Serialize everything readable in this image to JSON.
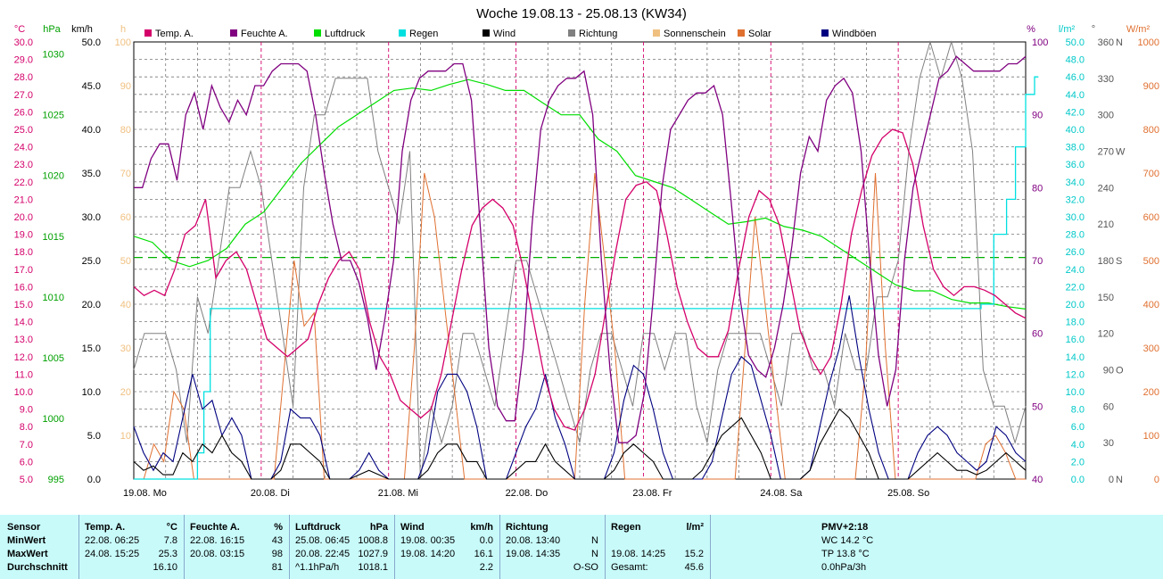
{
  "chart_data": {
    "type": "line",
    "title": "Woche 19.08.13 - 25.08.13 (KW34)",
    "x_labels": [
      "19.08.  Mo",
      "20.08.  Di",
      "21.08.  Mi",
      "22.08.  Do",
      "23.08.  Fr",
      "24.08.  Sa",
      "25.08.  So"
    ],
    "axes": {
      "temp": {
        "unit": "°C",
        "min": 5,
        "max": 30,
        "ticks": [
          "5.0",
          "6.0",
          "7.0",
          "8.0",
          "9.0",
          "10.0",
          "11.0",
          "12.0",
          "13.0",
          "14.0",
          "15.0",
          "16.0",
          "17.0",
          "18.0",
          "19.0",
          "20.0",
          "21.0",
          "22.0",
          "23.0",
          "24.0",
          "25.0",
          "26.0",
          "27.0",
          "28.0",
          "29.0",
          "30.0"
        ],
        "color": "#d4006a"
      },
      "pressure": {
        "unit": "hPa",
        "min": 995,
        "max": 1031,
        "ticks": [
          "995",
          "1000",
          "1005",
          "1010",
          "1015",
          "1020",
          "1025",
          "1030"
        ],
        "color": "#00a000"
      },
      "wind": {
        "unit": "km/h",
        "min": 0,
        "max": 50,
        "ticks": [
          "0.0",
          "5.0",
          "10.0",
          "15.0",
          "20.0",
          "25.0",
          "30.0",
          "35.0",
          "40.0",
          "45.0",
          "50.0"
        ],
        "color": "#000000"
      },
      "sun": {
        "unit": "h",
        "ticks": [
          "10",
          "20",
          "30",
          "40",
          "50",
          "60",
          "70",
          "80",
          "90",
          "100"
        ],
        "color": "#f0c080"
      },
      "humidity": {
        "unit": "%",
        "min": 40,
        "max": 100,
        "ticks": [
          "40",
          "50",
          "60",
          "70",
          "80",
          "90",
          "100"
        ],
        "color": "#800080"
      },
      "rain": {
        "unit": "l/m²",
        "min": 0,
        "max": 50,
        "ticks": [
          "0.0",
          "2.0",
          "4.0",
          "6.0",
          "8.0",
          "10.0",
          "12.0",
          "14.0",
          "16.0",
          "18.0",
          "20.0",
          "22.0",
          "24.0",
          "26.0",
          "28.0",
          "30.0",
          "32.0",
          "34.0",
          "36.0",
          "38.0",
          "40.0",
          "42.0",
          "44.0",
          "46.0",
          "48.0",
          "50.0"
        ],
        "color": "#00c8c8"
      },
      "direction": {
        "unit": "°",
        "ticks": [
          "0",
          "30",
          "60",
          "90",
          "120",
          "150",
          "180",
          "210",
          "240",
          "270",
          "300",
          "330",
          "360"
        ],
        "compass": {
          "0": "N",
          "90": "O",
          "180": "S",
          "270": "W",
          "360": "N"
        },
        "color": "#808080"
      },
      "solar": {
        "unit": "W/m²",
        "min": 0,
        "max": 1000,
        "ticks": [
          "0",
          "100",
          "200",
          "300",
          "400",
          "500",
          "600",
          "700",
          "800",
          "900",
          "1000"
        ],
        "color": "#e07030"
      }
    },
    "legend": [
      {
        "name": "Temp. A.",
        "color": "#d4006a"
      },
      {
        "name": "Feuchte A.",
        "color": "#800080"
      },
      {
        "name": "Luftdruck",
        "color": "#00dd00"
      },
      {
        "name": "Regen",
        "color": "#00e0e0"
      },
      {
        "name": "Wind",
        "color": "#000000"
      },
      {
        "name": "Richtung",
        "color": "#808080"
      },
      {
        "name": "Sonnenschein",
        "color": "#f0c080"
      },
      {
        "name": "Solar",
        "color": "#e07030"
      },
      {
        "name": "Windböen",
        "color": "#000080"
      }
    ],
    "series": {
      "temp": [
        16,
        15.5,
        15.8,
        15.5,
        17,
        19,
        19.5,
        21,
        16.5,
        17.5,
        18,
        17,
        15,
        13,
        12.5,
        12,
        12.5,
        13,
        15,
        16.5,
        17.5,
        18,
        17,
        14,
        12,
        11,
        9.5,
        9,
        8.5,
        9,
        11,
        14,
        17,
        19.5,
        20.5,
        21,
        20.5,
        19.5,
        17,
        14,
        11,
        9,
        8,
        7.8,
        9,
        11,
        14.5,
        18,
        21,
        21.8,
        22,
        21.5,
        19,
        16,
        14,
        12.5,
        12,
        12,
        13.5,
        17,
        20,
        21.5,
        21,
        19.5,
        16.5,
        13.5,
        12,
        11,
        12,
        15,
        19,
        21.5,
        23.5,
        24.5,
        25,
        24.8,
        23,
        19.5,
        17,
        16,
        15.5,
        16,
        16,
        15.8,
        15.5,
        15,
        14.5,
        14.2
      ],
      "humidity": [
        80,
        80,
        84,
        86,
        86,
        81,
        90,
        93,
        88,
        94,
        91,
        89,
        92,
        90,
        94,
        94,
        96,
        97,
        97,
        97,
        96,
        90,
        82,
        75,
        70,
        70,
        67,
        62,
        55,
        62,
        70,
        85,
        92,
        95,
        96,
        96,
        96,
        97,
        97,
        92,
        75,
        58,
        50,
        48,
        48,
        58,
        75,
        88,
        92,
        94,
        95,
        95,
        96,
        90,
        70,
        55,
        45,
        45,
        46,
        52,
        65,
        80,
        88,
        90,
        92,
        93,
        93,
        94,
        90,
        78,
        65,
        57,
        55,
        54,
        58,
        64,
        72,
        82,
        87,
        85,
        92,
        94,
        95,
        93,
        85,
        70,
        57,
        50,
        55,
        70,
        80,
        85,
        90,
        95,
        96,
        98,
        97,
        96,
        96,
        96,
        96,
        97,
        97,
        98
      ],
      "pressure": [
        1015,
        1014.5,
        1013,
        1012.5,
        1013,
        1014,
        1016,
        1017,
        1019,
        1021,
        1022.5,
        1024,
        1025,
        1026,
        1027,
        1027.2,
        1027,
        1027.5,
        1027.9,
        1027.5,
        1027,
        1027,
        1026,
        1025,
        1025,
        1023,
        1022,
        1020,
        1019.5,
        1019,
        1018,
        1017,
        1016,
        1016.2,
        1016.5,
        1015.8,
        1015.5,
        1015,
        1014,
        1013,
        1012,
        1011,
        1010.5,
        1010.5,
        1009.8,
        1009.5,
        1009.5,
        1009.2,
        1009
      ],
      "rain_steps": [
        [
          0,
          0
        ],
        [
          0.47,
          0
        ],
        [
          0.5,
          3
        ],
        [
          0.55,
          10
        ],
        [
          0.6,
          19.5
        ],
        [
          6.63,
          19.5
        ],
        [
          6.65,
          20
        ],
        [
          6.75,
          28
        ],
        [
          6.85,
          32
        ],
        [
          6.92,
          38
        ],
        [
          7.0,
          44
        ],
        [
          7.07,
          46
        ],
        [
          7.1,
          46
        ]
      ],
      "wind": [
        2,
        1,
        1.5,
        0.5,
        0.5,
        3,
        2,
        4,
        3,
        5,
        3,
        2,
        0,
        0,
        0,
        1,
        4,
        4,
        3,
        2,
        0,
        0,
        0,
        0.5,
        1,
        0.5,
        0,
        0,
        0,
        0,
        1,
        3,
        4,
        4,
        2,
        2,
        0,
        0,
        0,
        1,
        2,
        2,
        4,
        2,
        1,
        0,
        0,
        0,
        0,
        1,
        3,
        4,
        3,
        2,
        0,
        0,
        0,
        0,
        1,
        3,
        5,
        6,
        7,
        5,
        3,
        0,
        0,
        0,
        0,
        1,
        4,
        6,
        8,
        7,
        5,
        3,
        0,
        0,
        0,
        0,
        1,
        2,
        3,
        2,
        1,
        1,
        0.5,
        1,
        2,
        3,
        2,
        1
      ],
      "gusts": [
        6,
        3,
        1,
        3,
        2,
        7,
        12,
        8,
        9,
        5,
        7,
        5,
        0,
        0,
        0,
        2,
        8,
        7,
        7,
        5,
        0,
        0,
        0,
        1,
        3,
        1,
        0,
        0,
        0,
        0,
        3,
        10,
        12,
        12,
        10,
        6,
        0,
        0,
        0,
        3,
        6,
        8,
        12,
        7,
        4,
        0,
        0,
        0,
        0,
        3,
        9,
        13,
        12,
        8,
        3,
        0,
        0,
        0,
        0,
        2,
        7,
        12,
        14,
        13,
        9,
        5,
        0,
        0,
        0,
        1,
        6,
        11,
        15,
        21,
        14,
        8,
        3,
        0,
        0,
        0,
        3,
        5,
        6,
        5,
        3,
        2,
        1,
        2,
        6,
        5,
        3,
        2
      ],
      "direction": [
        90,
        120,
        120,
        120,
        90,
        30,
        150,
        120,
        180,
        240,
        240,
        270,
        240,
        180,
        120,
        60,
        240,
        300,
        300,
        330,
        330,
        330,
        330,
        270,
        240,
        210,
        270,
        0,
        60,
        30,
        60,
        120,
        120,
        90,
        60,
        120,
        180,
        180,
        150,
        120,
        90,
        60,
        30,
        90,
        120,
        120,
        90,
        60,
        120,
        120,
        90,
        120,
        120,
        60,
        30,
        90,
        120,
        120,
        120,
        120,
        90,
        60,
        120,
        120,
        90,
        90,
        60,
        120,
        90,
        90,
        150,
        150,
        180,
        270,
        330,
        360,
        330,
        360,
        330,
        270,
        90,
        60,
        60,
        30,
        60
      ],
      "solar": [
        0,
        0,
        80,
        40,
        200,
        160,
        0,
        0,
        0,
        0,
        0,
        0,
        0,
        0,
        0,
        250,
        500,
        350,
        380,
        0,
        0,
        0,
        0,
        0,
        0,
        0,
        0,
        0,
        300,
        700,
        600,
        400,
        200,
        0,
        0,
        0,
        0,
        0,
        0,
        0,
        0,
        0,
        0,
        0,
        0,
        400,
        700,
        500,
        300,
        0,
        0,
        0,
        0,
        0,
        0,
        0,
        0,
        0,
        0,
        0,
        0,
        300,
        600,
        400,
        200,
        0,
        0,
        0,
        0,
        0,
        0,
        0,
        0,
        250,
        700,
        300,
        0,
        0,
        0,
        0,
        0,
        0,
        0,
        0,
        0,
        80,
        100,
        60,
        0,
        0
      ]
    },
    "ref_lines": [
      {
        "name": "Luftdruck dashed",
        "axis": "pressure",
        "value": 1013.25,
        "style": "dashed",
        "color": "#00b000"
      }
    ],
    "grid": true
  },
  "stats": {
    "headers": {
      "sensor": "Sensor",
      "temp": "Temp. A.",
      "temp_unit": "°C",
      "hum": "Feuchte A.",
      "hum_unit": "%",
      "press": "Luftdruck",
      "press_unit": "hPa",
      "wind": "Wind",
      "wind_unit": "km/h",
      "dir": "Richtung",
      "rain": "Regen",
      "rain_unit": "l/m²",
      "pmv": "PMV+2:18"
    },
    "rows": [
      {
        "label": "MinWert",
        "temp_t": "22.08.  06:25",
        "temp_v": "7.8",
        "hum_t": "22.08.  16:15",
        "hum_v": "43",
        "press_t": "25.08.  06:45",
        "press_v": "1008.8",
        "wind_t": "19.08.  00:35",
        "wind_v": "0.0",
        "dir_t": "20.08.  13:40",
        "dir_v": "N",
        "rain_t": "",
        "rain_v": "",
        "pmv": "WC 14.2 °C"
      },
      {
        "label": "MaxWert",
        "temp_t": "24.08.  15:25",
        "temp_v": "25.3",
        "hum_t": "20.08.  03:15",
        "hum_v": "98",
        "press_t": "20.08.  22:45",
        "press_v": "1027.9",
        "wind_t": "19.08.  14:20",
        "wind_v": "16.1",
        "dir_t": "19.08.  14:35",
        "dir_v": "N",
        "rain_t": "19.08.  14:25",
        "rain_v": "15.2",
        "pmv": "TP 13.8 °C"
      },
      {
        "label": "Durchschnitt",
        "temp_t": "",
        "temp_v": "16.10",
        "hum_t": "",
        "hum_v": "81",
        "press_t": "^1.1hPa/h",
        "press_v": "1018.1",
        "wind_t": "",
        "wind_v": "2.2",
        "dir_t": "",
        "dir_v": "O-SO",
        "rain_t": "Gesamt:",
        "rain_v": "45.6",
        "pmv": "0.0hPa/3h"
      }
    ]
  }
}
